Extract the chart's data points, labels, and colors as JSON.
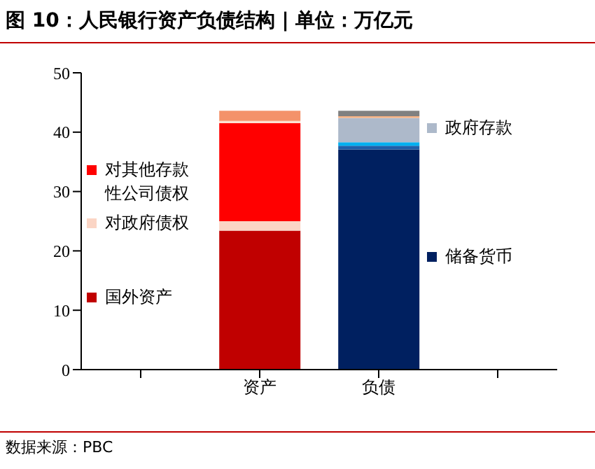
{
  "chart_data": {
    "type": "bar",
    "title": "图 10：人民银行资产负债结构 | 单位：万亿元",
    "annotations": [
      "数据来源：PBC"
    ],
    "categories": [
      null,
      "资产",
      "负债",
      null
    ],
    "stacked": true,
    "ylim": [
      0,
      50
    ],
    "yticks": [
      0,
      10,
      20,
      30,
      40,
      50
    ],
    "grid": false,
    "legend": "left",
    "series": [
      {
        "name": "国外资产",
        "color": "#c00000",
        "values": [
          null,
          23.4,
          null,
          null
        ]
      },
      {
        "name": "对政府债权",
        "color": "#fbd5c5",
        "values": [
          null,
          1.6,
          null,
          null
        ]
      },
      {
        "name": "对其他存款性公司债权",
        "color": "#ff0000",
        "values": [
          null,
          16.5,
          null,
          null
        ]
      },
      {
        "color": "#fde0d0",
        "values": [
          null,
          0.4,
          null,
          null
        ]
      },
      {
        "color": "#f4926a",
        "values": [
          null,
          1.7,
          null,
          null
        ]
      },
      {
        "name": "储备货币",
        "color": "#002060",
        "values": [
          null,
          null,
          37.1,
          null
        ]
      },
      {
        "color": "#1f5fa8",
        "values": [
          null,
          null,
          0.6,
          null
        ]
      },
      {
        "color": "#00b0f0",
        "values": [
          null,
          null,
          0.6,
          null
        ]
      },
      {
        "name": "政府存款",
        "color": "#adb9ca",
        "values": [
          null,
          null,
          4.1,
          null
        ]
      },
      {
        "color": "#f4b183",
        "values": [
          null,
          null,
          0.3,
          null
        ]
      },
      {
        "color": "#808080",
        "values": [
          null,
          null,
          0.9,
          null
        ]
      }
    ]
  }
}
